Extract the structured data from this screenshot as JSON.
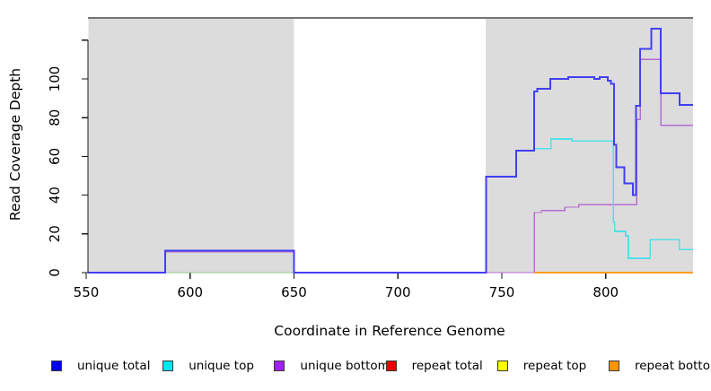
{
  "figure": {
    "y_axis_label": "Read Coverage Depth",
    "x_axis_label": "Coordinate in Reference Genome",
    "x_ticks": [
      550,
      600,
      650,
      700,
      750,
      800
    ],
    "y_ticks": [
      0,
      20,
      40,
      60,
      80,
      100
    ],
    "y_ticks_unlabeled": [
      120
    ]
  },
  "legend": [
    {
      "label": "unique total",
      "color": "#0000ee"
    },
    {
      "label": "unique top",
      "color": "#00e5ee"
    },
    {
      "label": "unique bottom",
      "color": "#a020f0"
    },
    {
      "label": "repeat total",
      "color": "#ee0000"
    },
    {
      "label": "repeat top",
      "color": "#ffff00"
    },
    {
      "label": "repeat bottom",
      "color": "#ff9400"
    }
  ],
  "chart_data": {
    "type": "line",
    "subtype": "step-coverage",
    "title": "",
    "xlabel": "Coordinate in Reference Genome",
    "ylabel": "Read Coverage Depth",
    "xlim": [
      551,
      842
    ],
    "ylim": [
      0,
      132
    ],
    "grid": false,
    "legend_position": "bottom",
    "shaded_regions": [
      {
        "name": "left-gray-region",
        "x0": 551,
        "x1": 650,
        "color": "#dcdcdc"
      },
      {
        "name": "right-gray-region",
        "x0": 742.2,
        "x1": 842,
        "color": "#dcdcdc"
      }
    ],
    "series": [
      {
        "name": "unique bottom",
        "color": "#b66cd6",
        "width": 1.4,
        "points": [
          [
            551,
            0
          ],
          [
            588,
            10.8
          ],
          [
            650,
            0
          ],
          [
            742.5,
            0
          ],
          [
            765.6,
            31
          ],
          [
            769,
            32
          ],
          [
            780.4,
            33.8
          ],
          [
            787,
            35
          ],
          [
            814.9,
            79
          ],
          [
            816.6,
            110
          ],
          [
            826.5,
            76
          ],
          [
            842,
            76
          ]
        ]
      },
      {
        "name": "green zero segment (unlabeled)",
        "color": "#8ccc8c",
        "width": 1.4,
        "points": [
          [
            588,
            0
          ],
          [
            650,
            0
          ]
        ]
      },
      {
        "name": "unique top",
        "color": "#55dfe8",
        "width": 1.6,
        "points": [
          [
            765.6,
            64
          ],
          [
            773.7,
            69
          ],
          [
            783.7,
            68
          ],
          [
            803.6,
            26
          ],
          [
            804.4,
            21.3
          ],
          [
            809.6,
            19
          ],
          [
            810.9,
            7.4
          ],
          [
            821.3,
            17.1
          ],
          [
            835.5,
            12
          ],
          [
            842,
            12
          ]
        ]
      },
      {
        "name": "unique total",
        "color": "#423ff2",
        "width": 2,
        "points": [
          [
            551,
            0
          ],
          [
            588,
            11.4
          ],
          [
            650,
            0
          ],
          [
            742.5,
            49.5
          ],
          [
            757,
            63
          ],
          [
            765.5,
            93.5
          ],
          [
            767,
            95
          ],
          [
            773.3,
            100
          ],
          [
            782,
            101
          ],
          [
            794.5,
            100
          ],
          [
            797,
            101
          ],
          [
            801,
            99
          ],
          [
            802.5,
            97.5
          ],
          [
            804,
            66
          ],
          [
            805,
            54.5
          ],
          [
            809,
            46
          ],
          [
            813,
            40
          ],
          [
            814.5,
            86
          ],
          [
            816.5,
            115.5
          ],
          [
            822,
            126
          ],
          [
            826.5,
            92.5
          ],
          [
            835.5,
            86.5
          ],
          [
            842,
            86.5
          ]
        ]
      },
      {
        "name": "repeat bottom",
        "color": "#ff9d1e",
        "width": 2,
        "points": [
          [
            765.6,
            0
          ],
          [
            842,
            0
          ]
        ]
      }
    ]
  }
}
